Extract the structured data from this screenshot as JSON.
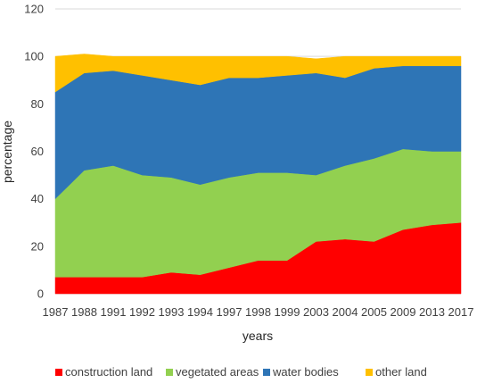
{
  "chart_data": {
    "type": "area",
    "stacked": true,
    "title": "",
    "xlabel": "years",
    "ylabel": "percentage",
    "ylim": [
      0,
      120
    ],
    "yticks": [
      0,
      20,
      40,
      60,
      80,
      100,
      120
    ],
    "grid": true,
    "legend_position": "bottom",
    "categories": [
      "1987",
      "1988",
      "1991",
      "1992",
      "1993",
      "1994",
      "1997",
      "1998",
      "1999",
      "2003",
      "2004",
      "2005",
      "2009",
      "2013",
      "2017"
    ],
    "series": [
      {
        "name": "construction land",
        "color": "#ff0000",
        "values": [
          7,
          7,
          7,
          7,
          9,
          8,
          11,
          14,
          14,
          22,
          23,
          22,
          27,
          29,
          30
        ]
      },
      {
        "name": "vegetated areas",
        "color": "#92d050",
        "values": [
          33,
          45,
          47,
          43,
          40,
          38,
          38,
          37,
          37,
          28,
          31,
          35,
          34,
          31,
          30
        ]
      },
      {
        "name": "water bodies",
        "color": "#2e75b6",
        "values": [
          45,
          41,
          40,
          42,
          41,
          42,
          42,
          40,
          41,
          43,
          37,
          38,
          35,
          36,
          36
        ]
      },
      {
        "name": "other land",
        "color": "#ffc000",
        "values": [
          15,
          8,
          6,
          8,
          10,
          12,
          9,
          9,
          8,
          6,
          9,
          5,
          4,
          4,
          4
        ]
      }
    ]
  }
}
